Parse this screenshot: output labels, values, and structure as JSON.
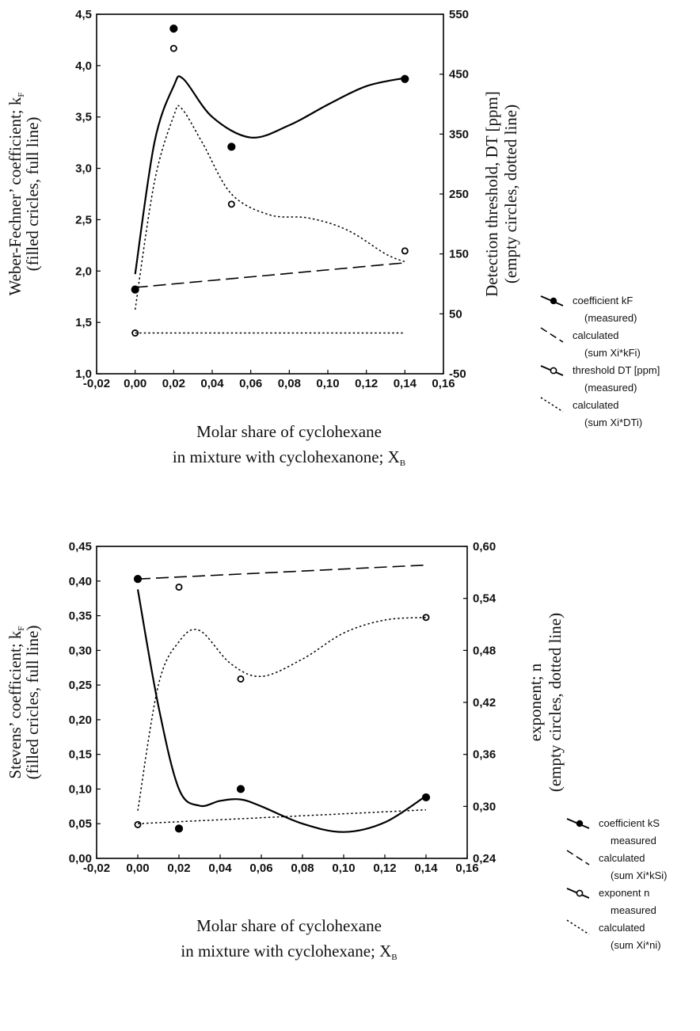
{
  "chart_data": [
    {
      "type": "scatter",
      "title": "",
      "xlabel": "Molar share of cyclohexane",
      "xlabel2": "in mixture with cyclohexanone; X",
      "xlabel_sub": "B",
      "ylabel_left": "Weber-Fechner’ coefficient; k",
      "ylabel_left_sub": "F",
      "ylabel_left2": "(filled cricles, full line)",
      "ylabel_right": "Detection threshold, DT [ppm]",
      "ylabel_right2": "(empty circles, dotted line)",
      "xlim": [
        -0.02,
        0.16
      ],
      "ylim_left": [
        1.0,
        4.5
      ],
      "ylim_right": [
        -50,
        550
      ],
      "x_ticks": [
        "-0,02",
        "0,00",
        "0,02",
        "0,04",
        "0,06",
        "0,08",
        "0,10",
        "0,12",
        "0,14",
        "0,16"
      ],
      "y_left_ticks": [
        "1,0",
        "1,5",
        "2,0",
        "2,5",
        "3,0",
        "3,5",
        "4,0",
        "4,5"
      ],
      "y_right_ticks": [
        "-50",
        "50",
        "150",
        "250",
        "350",
        "450",
        "550"
      ],
      "grid": false,
      "legend_position": "right",
      "legend": [
        {
          "marker": "filled",
          "line": "solid",
          "lines": [
            "coefficient kF",
            "(measured)"
          ]
        },
        {
          "marker": "none",
          "line": "dashed",
          "lines": [
            "calculated",
            "(sum Xi*kFi)"
          ]
        },
        {
          "marker": "empty",
          "line": "solid",
          "lines": [
            "threshold DT [ppm]",
            "(measured)"
          ]
        },
        {
          "marker": "none",
          "line": "dotted",
          "lines": [
            "calculated",
            "(sum Xi*DTi)"
          ]
        }
      ],
      "series": [
        {
          "kind": "points",
          "marker": "filled",
          "axis": "left",
          "x": [
            0.0,
            0.02,
            0.05,
            0.14
          ],
          "y": [
            1.82,
            4.36,
            3.21,
            3.87
          ]
        },
        {
          "kind": "curve",
          "line": "solid",
          "axis": "left",
          "x": [
            0.0,
            0.01,
            0.02,
            0.025,
            0.04,
            0.06,
            0.08,
            0.1,
            0.12,
            0.14
          ],
          "y": [
            1.97,
            3.25,
            3.8,
            3.87,
            3.5,
            3.3,
            3.42,
            3.62,
            3.8,
            3.88
          ]
        },
        {
          "kind": "line",
          "line": "dashed",
          "axis": "left",
          "x": [
            0.0,
            0.14
          ],
          "y": [
            1.84,
            2.08
          ]
        },
        {
          "kind": "points",
          "marker": "empty",
          "axis": "right",
          "x": [
            0.0,
            0.02,
            0.05,
            0.14
          ],
          "y": [
            18,
            493,
            233,
            155
          ]
        },
        {
          "kind": "curve",
          "line": "dotted",
          "axis": "right",
          "x": [
            0.0,
            0.01,
            0.02,
            0.024,
            0.035,
            0.05,
            0.07,
            0.09,
            0.11,
            0.13,
            0.14
          ],
          "y": [
            57,
            270,
            380,
            393,
            335,
            250,
            215,
            210,
            190,
            150,
            137
          ]
        },
        {
          "kind": "line",
          "line": "dotted",
          "axis": "right",
          "x": [
            0.0,
            0.14
          ],
          "y": [
            18,
            18
          ]
        }
      ]
    },
    {
      "type": "scatter",
      "title": "",
      "xlabel": "Molar share of cyclohexane",
      "xlabel2": "in mixture with cyclohexane; X",
      "xlabel_sub": "B",
      "ylabel_left": "Stevens’ coefficient; k",
      "ylabel_left_sub": "F",
      "ylabel_left2": "(filled cricles, full line)",
      "ylabel_right": "exponent; n",
      "ylabel_right2": "(empty circles, dotted line)",
      "xlim": [
        -0.02,
        0.16
      ],
      "ylim_left": [
        0.0,
        0.45
      ],
      "ylim_right": [
        0.24,
        0.6
      ],
      "x_ticks": [
        "-0,02",
        "0,00",
        "0,02",
        "0,04",
        "0,06",
        "0,08",
        "0,10",
        "0,12",
        "0,14",
        "0,16"
      ],
      "y_left_ticks": [
        "0,00",
        "0,05",
        "0,10",
        "0,15",
        "0,20",
        "0,25",
        "0,30",
        "0,35",
        "0,40",
        "0,45"
      ],
      "y_right_ticks": [
        "0,24",
        "0,30",
        "0,36",
        "0,42",
        "0,48",
        "0,54",
        "0,60"
      ],
      "grid": false,
      "legend_position": "right",
      "legend": [
        {
          "marker": "filled",
          "line": "solid",
          "lines": [
            "coefficient kS",
            "measured"
          ]
        },
        {
          "marker": "none",
          "line": "dashed",
          "lines": [
            "calculated",
            "(sum Xi*kSi)"
          ]
        },
        {
          "marker": "empty",
          "line": "solid",
          "lines": [
            "exponent n",
            "measured"
          ]
        },
        {
          "marker": "none",
          "line": "dotted",
          "lines": [
            "calculated",
            "(sum Xi*ni)"
          ]
        }
      ],
      "series": [
        {
          "kind": "points",
          "marker": "filled",
          "axis": "left",
          "x": [
            0.0,
            0.02,
            0.05,
            0.14
          ],
          "y": [
            0.403,
            0.043,
            0.1,
            0.088
          ]
        },
        {
          "kind": "curve",
          "line": "solid",
          "axis": "left",
          "x": [
            0.0,
            0.01,
            0.02,
            0.03,
            0.04,
            0.05,
            0.06,
            0.08,
            0.1,
            0.12,
            0.14
          ],
          "y": [
            0.388,
            0.22,
            0.1,
            0.076,
            0.083,
            0.085,
            0.075,
            0.05,
            0.038,
            0.052,
            0.09
          ]
        },
        {
          "kind": "line",
          "line": "dashed",
          "axis": "left",
          "x": [
            0.0,
            0.14
          ],
          "y": [
            0.403,
            0.423
          ]
        },
        {
          "kind": "points",
          "marker": "empty",
          "axis": "right",
          "x": [
            0.0,
            0.02,
            0.05,
            0.14
          ],
          "y": [
            0.279,
            0.553,
            0.447,
            0.518
          ]
        },
        {
          "kind": "curve",
          "line": "dotted",
          "axis": "right",
          "x": [
            0.0,
            0.01,
            0.02,
            0.03,
            0.045,
            0.06,
            0.08,
            0.1,
            0.12,
            0.14
          ],
          "y": [
            0.295,
            0.44,
            0.49,
            0.503,
            0.465,
            0.45,
            0.47,
            0.5,
            0.515,
            0.518
          ]
        },
        {
          "kind": "line",
          "line": "dotted",
          "axis": "left",
          "x": [
            0.0,
            0.14
          ],
          "y": [
            0.05,
            0.07
          ]
        }
      ]
    }
  ]
}
